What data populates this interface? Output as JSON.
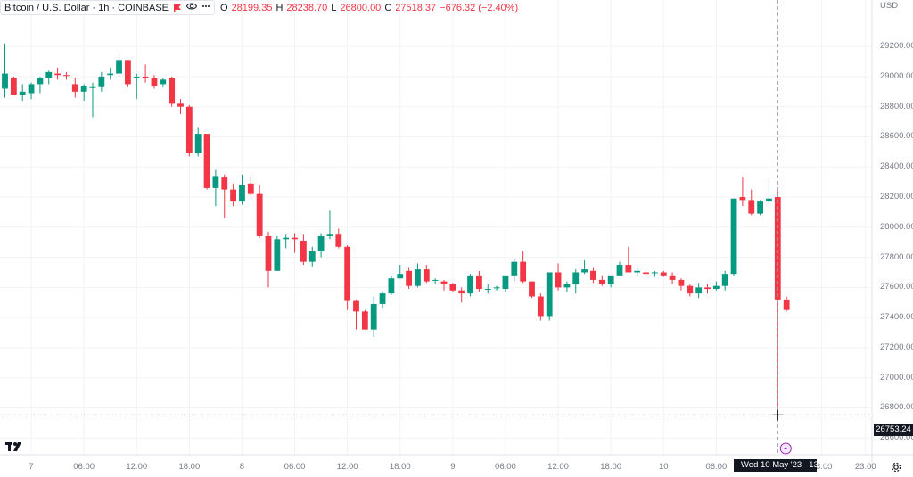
{
  "legend": {
    "symbol": "Bitcoin / U.S. Dollar · 1h · COINBASE",
    "open_label": "O",
    "open_value": "28199.35",
    "high_label": "H",
    "high_value": "28238.70",
    "low_label": "L",
    "low_value": "26800.00",
    "close_label": "C",
    "close_value": "27518.37",
    "change": "−676.32 (−2.40%)"
  },
  "currency": "USD",
  "crosshair": {
    "price_label": "26753.24",
    "time_label": "Wed 10 May '23",
    "time_label_hour": "13:00"
  },
  "colors": {
    "up": "#089981",
    "down": "#f23645",
    "text": "#787b86",
    "grid": "#f2f3f5"
  },
  "chart_data": {
    "type": "candlestick",
    "symbol": "BTCUSD",
    "interval": "1h",
    "exchange": "COINBASE",
    "ylim": [
      26560,
      29420
    ],
    "price_ticks": [
      "29200.00",
      "29000.00",
      "28800.00",
      "28600.00",
      "28400.00",
      "28200.00",
      "28000.00",
      "27800.00",
      "27600.00",
      "27400.00",
      "27200.00",
      "27000.00",
      "26800.00",
      "26600.00"
    ],
    "time_ticks": [
      {
        "label": "7",
        "hour": 0
      },
      {
        "label": "06:00",
        "hour": 6
      },
      {
        "label": "12:00",
        "hour": 12
      },
      {
        "label": "18:00",
        "hour": 18
      },
      {
        "label": "8",
        "hour": 24
      },
      {
        "label": "06:00",
        "hour": 30
      },
      {
        "label": "12:00",
        "hour": 36
      },
      {
        "label": "18:00",
        "hour": 42
      },
      {
        "label": "9",
        "hour": 48
      },
      {
        "label": "06:00",
        "hour": 54
      },
      {
        "label": "12:00",
        "hour": 60
      },
      {
        "label": "18:00",
        "hour": 66
      },
      {
        "label": "10",
        "hour": 72
      },
      {
        "label": "06:00",
        "hour": 78
      },
      {
        "label": "18:00",
        "hour": 90
      },
      {
        "label": "23:00",
        "hour": 95
      }
    ],
    "first_hour": -3,
    "crosshair_hour": 85,
    "crosshair_price": 26753.24,
    "candles": [
      {
        "o": 28920,
        "h": 29220,
        "l": 28860,
        "c": 29020
      },
      {
        "o": 28990,
        "h": 29000,
        "l": 28880,
        "c": 28880
      },
      {
        "o": 28880,
        "h": 28950,
        "l": 28840,
        "c": 28900
      },
      {
        "o": 28890,
        "h": 28960,
        "l": 28850,
        "c": 28950
      },
      {
        "o": 28950,
        "h": 29000,
        "l": 28890,
        "c": 28990
      },
      {
        "o": 28990,
        "h": 29040,
        "l": 28950,
        "c": 29030
      },
      {
        "o": 29020,
        "h": 29060,
        "l": 28980,
        "c": 29010
      },
      {
        "o": 29010,
        "h": 29030,
        "l": 28980,
        "c": 29005
      },
      {
        "o": 28950,
        "h": 28990,
        "l": 28860,
        "c": 28900
      },
      {
        "o": 28900,
        "h": 28950,
        "l": 28840,
        "c": 28940
      },
      {
        "o": 28930,
        "h": 28960,
        "l": 28730,
        "c": 28930
      },
      {
        "o": 28930,
        "h": 29030,
        "l": 28900,
        "c": 29000
      },
      {
        "o": 29010,
        "h": 29060,
        "l": 28980,
        "c": 29020
      },
      {
        "o": 29020,
        "h": 29150,
        "l": 29000,
        "c": 29110
      },
      {
        "o": 29110,
        "h": 29110,
        "l": 28930,
        "c": 28950
      },
      {
        "o": 29000,
        "h": 29020,
        "l": 28850,
        "c": 29000
      },
      {
        "o": 29000,
        "h": 29080,
        "l": 28960,
        "c": 28990
      },
      {
        "o": 28990,
        "h": 29010,
        "l": 28920,
        "c": 28940
      },
      {
        "o": 28950,
        "h": 28990,
        "l": 28930,
        "c": 28980
      },
      {
        "o": 28990,
        "h": 29000,
        "l": 28800,
        "c": 28820
      },
      {
        "o": 28820,
        "h": 28850,
        "l": 28750,
        "c": 28800
      },
      {
        "o": 28800,
        "h": 28810,
        "l": 28470,
        "c": 28490
      },
      {
        "o": 28490,
        "h": 28660,
        "l": 28470,
        "c": 28620
      },
      {
        "o": 28620,
        "h": 28620,
        "l": 28250,
        "c": 28260
      },
      {
        "o": 28260,
        "h": 28380,
        "l": 28140,
        "c": 28340
      },
      {
        "o": 28330,
        "h": 28350,
        "l": 28060,
        "c": 28250
      },
      {
        "o": 28250,
        "h": 28290,
        "l": 28140,
        "c": 28170
      },
      {
        "o": 28170,
        "h": 28350,
        "l": 28150,
        "c": 28280
      },
      {
        "o": 28290,
        "h": 28330,
        "l": 28210,
        "c": 28220
      },
      {
        "o": 28220,
        "h": 28280,
        "l": 27930,
        "c": 27940
      },
      {
        "o": 27940,
        "h": 27970,
        "l": 27600,
        "c": 27710
      },
      {
        "o": 27710,
        "h": 27940,
        "l": 27710,
        "c": 27920
      },
      {
        "o": 27920,
        "h": 27950,
        "l": 27860,
        "c": 27930
      },
      {
        "o": 27930,
        "h": 27960,
        "l": 27830,
        "c": 27920
      },
      {
        "o": 27910,
        "h": 27950,
        "l": 27750,
        "c": 27770
      },
      {
        "o": 27770,
        "h": 27870,
        "l": 27740,
        "c": 27840
      },
      {
        "o": 27840,
        "h": 27960,
        "l": 27800,
        "c": 27940
      },
      {
        "o": 27940,
        "h": 28110,
        "l": 27920,
        "c": 27950
      },
      {
        "o": 27950,
        "h": 27990,
        "l": 27860,
        "c": 27870
      },
      {
        "o": 27870,
        "h": 27880,
        "l": 27450,
        "c": 27510
      },
      {
        "o": 27510,
        "h": 27520,
        "l": 27320,
        "c": 27440
      },
      {
        "o": 27440,
        "h": 27450,
        "l": 27320,
        "c": 27320
      },
      {
        "o": 27320,
        "h": 27540,
        "l": 27270,
        "c": 27490
      },
      {
        "o": 27490,
        "h": 27570,
        "l": 27460,
        "c": 27560
      },
      {
        "o": 27560,
        "h": 27680,
        "l": 27550,
        "c": 27660
      },
      {
        "o": 27660,
        "h": 27750,
        "l": 27660,
        "c": 27690
      },
      {
        "o": 27710,
        "h": 27730,
        "l": 27590,
        "c": 27610
      },
      {
        "o": 27610,
        "h": 27760,
        "l": 27600,
        "c": 27720
      },
      {
        "o": 27720,
        "h": 27750,
        "l": 27630,
        "c": 27640
      },
      {
        "o": 27650,
        "h": 27660,
        "l": 27620,
        "c": 27650
      },
      {
        "o": 27640,
        "h": 27650,
        "l": 27580,
        "c": 27620
      },
      {
        "o": 27620,
        "h": 27630,
        "l": 27570,
        "c": 27580
      },
      {
        "o": 27580,
        "h": 27600,
        "l": 27500,
        "c": 27560
      },
      {
        "o": 27560,
        "h": 27690,
        "l": 27540,
        "c": 27680
      },
      {
        "o": 27680,
        "h": 27710,
        "l": 27570,
        "c": 27590
      },
      {
        "o": 27590,
        "h": 27620,
        "l": 27560,
        "c": 27590
      },
      {
        "o": 27595,
        "h": 27610,
        "l": 27580,
        "c": 27600
      },
      {
        "o": 27590,
        "h": 27660,
        "l": 27570,
        "c": 27680
      },
      {
        "o": 27680,
        "h": 27790,
        "l": 27640,
        "c": 27770
      },
      {
        "o": 27770,
        "h": 27840,
        "l": 27630,
        "c": 27640
      },
      {
        "o": 27640,
        "h": 27640,
        "l": 27530,
        "c": 27540
      },
      {
        "o": 27540,
        "h": 27560,
        "l": 27380,
        "c": 27410
      },
      {
        "o": 27410,
        "h": 27700,
        "l": 27380,
        "c": 27700
      },
      {
        "o": 27700,
        "h": 27760,
        "l": 27580,
        "c": 27600
      },
      {
        "o": 27600,
        "h": 27640,
        "l": 27570,
        "c": 27620
      },
      {
        "o": 27620,
        "h": 27720,
        "l": 27560,
        "c": 27700
      },
      {
        "o": 27700,
        "h": 27780,
        "l": 27690,
        "c": 27720
      },
      {
        "o": 27710,
        "h": 27730,
        "l": 27630,
        "c": 27650
      },
      {
        "o": 27650,
        "h": 27680,
        "l": 27610,
        "c": 27620
      },
      {
        "o": 27620,
        "h": 27680,
        "l": 27600,
        "c": 27680
      },
      {
        "o": 27680,
        "h": 27770,
        "l": 27680,
        "c": 27750
      },
      {
        "o": 27750,
        "h": 27870,
        "l": 27700,
        "c": 27700
      },
      {
        "o": 27700,
        "h": 27730,
        "l": 27680,
        "c": 27710
      },
      {
        "o": 27700,
        "h": 27720,
        "l": 27680,
        "c": 27690
      },
      {
        "o": 27700,
        "h": 27710,
        "l": 27670,
        "c": 27700
      },
      {
        "o": 27700,
        "h": 27710,
        "l": 27670,
        "c": 27680
      },
      {
        "o": 27680,
        "h": 27700,
        "l": 27620,
        "c": 27650
      },
      {
        "o": 27650,
        "h": 27660,
        "l": 27580,
        "c": 27610
      },
      {
        "o": 27610,
        "h": 27620,
        "l": 27540,
        "c": 27560
      },
      {
        "o": 27560,
        "h": 27630,
        "l": 27530,
        "c": 27600
      },
      {
        "o": 27600,
        "h": 27620,
        "l": 27560,
        "c": 27590
      },
      {
        "o": 27590,
        "h": 27640,
        "l": 27580,
        "c": 27610
      },
      {
        "o": 27610,
        "h": 27710,
        "l": 27580,
        "c": 27690
      },
      {
        "o": 27690,
        "h": 28190,
        "l": 27680,
        "c": 28190
      },
      {
        "o": 28200,
        "h": 28330,
        "l": 28140,
        "c": 28180
      },
      {
        "o": 28180,
        "h": 28250,
        "l": 28080,
        "c": 28090
      },
      {
        "o": 28090,
        "h": 28180,
        "l": 28080,
        "c": 28170
      },
      {
        "o": 28170,
        "h": 28310,
        "l": 28150,
        "c": 28190
      },
      {
        "o": 28200,
        "h": 28240,
        "l": 26800,
        "c": 27520
      },
      {
        "o": 27520,
        "h": 27540,
        "l": 27440,
        "c": 27450
      }
    ]
  }
}
